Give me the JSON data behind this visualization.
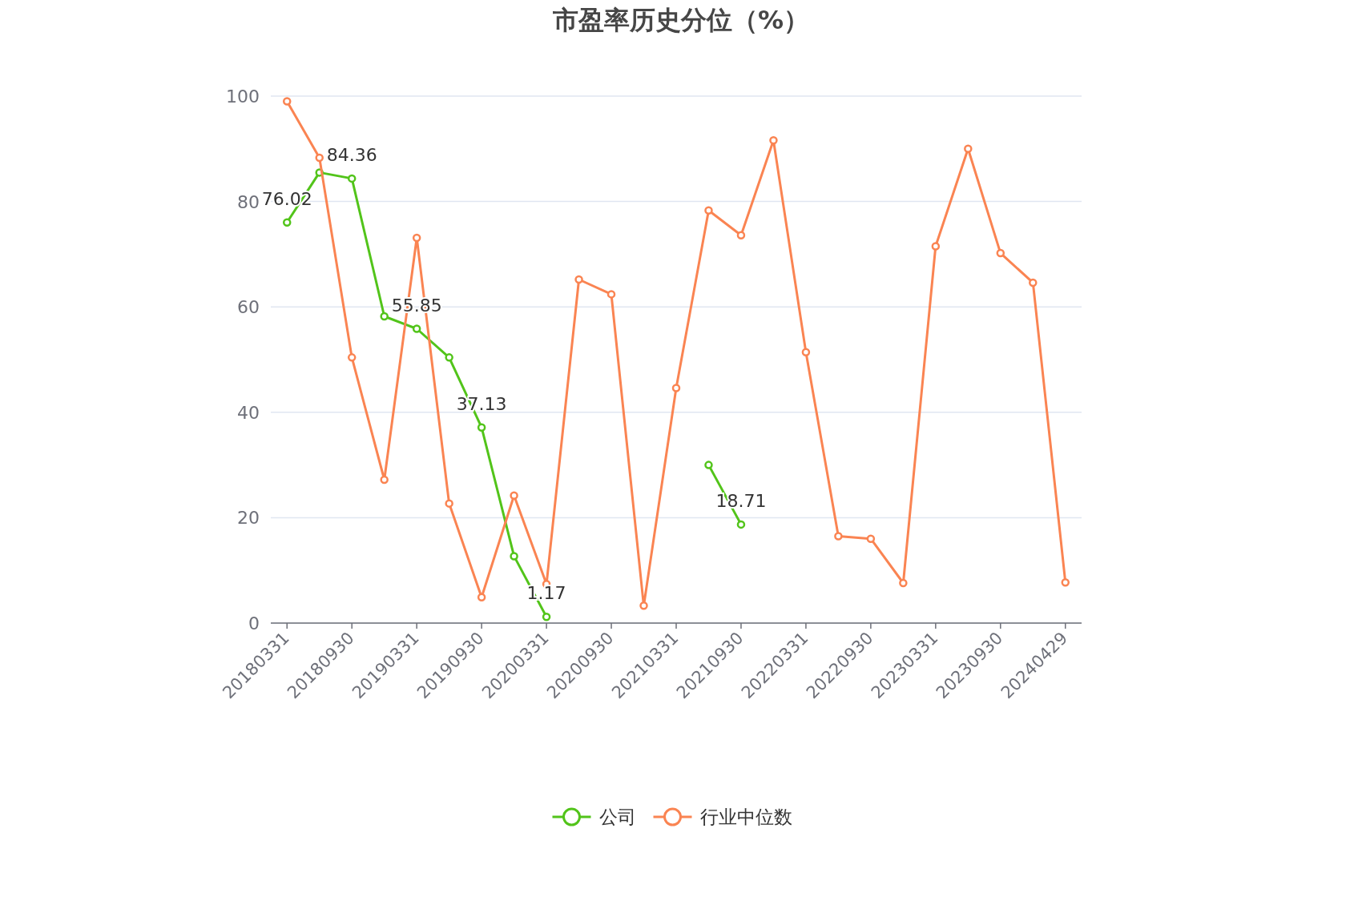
{
  "chart_data": {
    "type": "line",
    "title": "市盈率历史分位（%）",
    "categories": [
      "20180331",
      null,
      "20180930",
      null,
      "20190331",
      null,
      "20190930",
      null,
      "20200331",
      null,
      "20200930",
      null,
      "20210331",
      null,
      "20210930",
      null,
      "20220331",
      null,
      "20220930",
      null,
      "20230331",
      null,
      "20230930",
      null,
      "20240429"
    ],
    "series": [
      {
        "name": "公司",
        "color": "#52c41a",
        "values": [
          76.02,
          85.5,
          84.36,
          58.2,
          55.85,
          50.4,
          37.13,
          12.7,
          1.17,
          null,
          null,
          null,
          null,
          30.0,
          18.71,
          null,
          null,
          null,
          null,
          null,
          null,
          null,
          null,
          null,
          null
        ],
        "value_labels": [
          "76.02",
          null,
          "84.36",
          null,
          "55.85",
          null,
          "37.13",
          null,
          "1.17",
          null,
          null,
          null,
          null,
          null,
          "18.71",
          null,
          null,
          null,
          null,
          null,
          null,
          null,
          null,
          null,
          null
        ]
      },
      {
        "name": "行业中位数",
        "color": "#fa8452",
        "values": [
          99.0,
          88.3,
          50.4,
          27.2,
          73.1,
          22.7,
          4.9,
          24.2,
          7.4,
          65.2,
          62.4,
          3.3,
          44.6,
          78.3,
          73.6,
          91.6,
          51.4,
          16.5,
          16.0,
          7.6,
          71.5,
          90.0,
          70.2,
          64.6,
          7.7
        ]
      }
    ],
    "ylim": [
      0,
      100
    ],
    "yticks": [
      0,
      20,
      40,
      60,
      80,
      100
    ],
    "grid": "y",
    "legend": "bottom",
    "marker": "circle"
  }
}
